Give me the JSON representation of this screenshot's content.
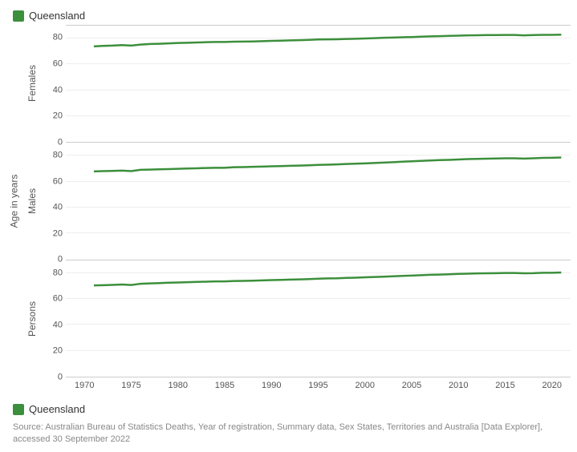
{
  "legend": {
    "label": "Queensland",
    "swatch_color": "#3c8f3c"
  },
  "axes": {
    "y_label": "Age in years",
    "x_ticks": [
      1970,
      1975,
      1980,
      1985,
      1990,
      1995,
      2000,
      2005,
      2010,
      2015,
      2020
    ],
    "x_min": 1968,
    "x_max": 2022,
    "y_ticks": [
      0,
      20,
      40,
      60,
      80
    ],
    "y_min": 0,
    "y_max": 90,
    "tick_fontsize": 11,
    "label_fontsize": 12
  },
  "style": {
    "line_color": "#3c8f3c",
    "line_width": 2.5,
    "grid_color": "#eeeeee",
    "panel_border_color": "#cccccc",
    "background_color": "#ffffff",
    "text_color": "#555555"
  },
  "panels": [
    {
      "name": "Females",
      "series": {
        "x": [
          1971,
          1972,
          1973,
          1974,
          1975,
          1976,
          1977,
          1978,
          1979,
          1980,
          1981,
          1982,
          1983,
          1984,
          1985,
          1986,
          1987,
          1988,
          1989,
          1990,
          1991,
          1992,
          1993,
          1994,
          1995,
          1996,
          1997,
          1998,
          1999,
          2000,
          2001,
          2002,
          2003,
          2004,
          2005,
          2006,
          2007,
          2008,
          2009,
          2010,
          2011,
          2012,
          2013,
          2014,
          2015,
          2016,
          2017,
          2018,
          2019,
          2020,
          2021
        ],
        "y": [
          74.0,
          74.4,
          74.6,
          75.0,
          74.6,
          75.4,
          75.8,
          76.0,
          76.3,
          76.6,
          76.8,
          77.0,
          77.2,
          77.4,
          77.4,
          77.6,
          77.7,
          77.8,
          78.0,
          78.2,
          78.4,
          78.6,
          78.8,
          79.0,
          79.3,
          79.4,
          79.5,
          79.7,
          79.9,
          80.1,
          80.3,
          80.6,
          80.8,
          81.0,
          81.2,
          81.5,
          81.7,
          81.9,
          82.1,
          82.3,
          82.5,
          82.6,
          82.7,
          82.7,
          82.8,
          82.8,
          82.5,
          82.7,
          82.9,
          82.9,
          83.0
        ]
      }
    },
    {
      "name": "Males",
      "series": {
        "x": [
          1971,
          1972,
          1973,
          1974,
          1975,
          1976,
          1977,
          1978,
          1979,
          1980,
          1981,
          1982,
          1983,
          1984,
          1985,
          1986,
          1987,
          1988,
          1989,
          1990,
          1991,
          1992,
          1993,
          1994,
          1995,
          1996,
          1997,
          1998,
          1999,
          2000,
          2001,
          2002,
          2003,
          2004,
          2005,
          2006,
          2007,
          2008,
          2009,
          2010,
          2011,
          2012,
          2013,
          2014,
          2015,
          2016,
          2017,
          2018,
          2019,
          2020,
          2021
        ],
        "y": [
          67.8,
          68.0,
          68.2,
          68.4,
          68.0,
          69.0,
          69.2,
          69.4,
          69.6,
          69.8,
          70.0,
          70.2,
          70.4,
          70.6,
          70.6,
          71.0,
          71.1,
          71.3,
          71.5,
          71.7,
          71.9,
          72.1,
          72.3,
          72.5,
          72.8,
          73.0,
          73.2,
          73.5,
          73.7,
          74.0,
          74.3,
          74.6,
          74.9,
          75.3,
          75.6,
          75.9,
          76.2,
          76.5,
          76.7,
          77.0,
          77.3,
          77.5,
          77.6,
          77.8,
          77.9,
          77.9,
          77.7,
          77.9,
          78.2,
          78.3,
          78.5
        ]
      }
    },
    {
      "name": "Persons",
      "series": {
        "x": [
          1971,
          1972,
          1973,
          1974,
          1975,
          1976,
          1977,
          1978,
          1979,
          1980,
          1981,
          1982,
          1983,
          1984,
          1985,
          1986,
          1987,
          1988,
          1989,
          1990,
          1991,
          1992,
          1993,
          1994,
          1995,
          1996,
          1997,
          1998,
          1999,
          2000,
          2001,
          2002,
          2003,
          2004,
          2005,
          2006,
          2007,
          2008,
          2009,
          2010,
          2011,
          2012,
          2013,
          2014,
          2015,
          2016,
          2017,
          2018,
          2019,
          2020,
          2021
        ],
        "y": [
          70.7,
          70.9,
          71.1,
          71.4,
          71.0,
          72.0,
          72.3,
          72.5,
          72.8,
          73.0,
          73.2,
          73.4,
          73.6,
          73.8,
          73.8,
          74.1,
          74.2,
          74.4,
          74.6,
          74.8,
          75.0,
          75.2,
          75.4,
          75.6,
          75.9,
          76.1,
          76.2,
          76.5,
          76.7,
          77.0,
          77.2,
          77.5,
          77.8,
          78.1,
          78.3,
          78.6,
          78.9,
          79.1,
          79.3,
          79.6,
          79.8,
          80.0,
          80.1,
          80.2,
          80.3,
          80.3,
          80.1,
          80.2,
          80.5,
          80.5,
          80.7
        ]
      }
    }
  ],
  "source": "Source: Australian Bureau of Statistics Deaths, Year of registration, Summary data, Sex States, Territories and Australia [Data Explorer], accessed 30 September 2022"
}
